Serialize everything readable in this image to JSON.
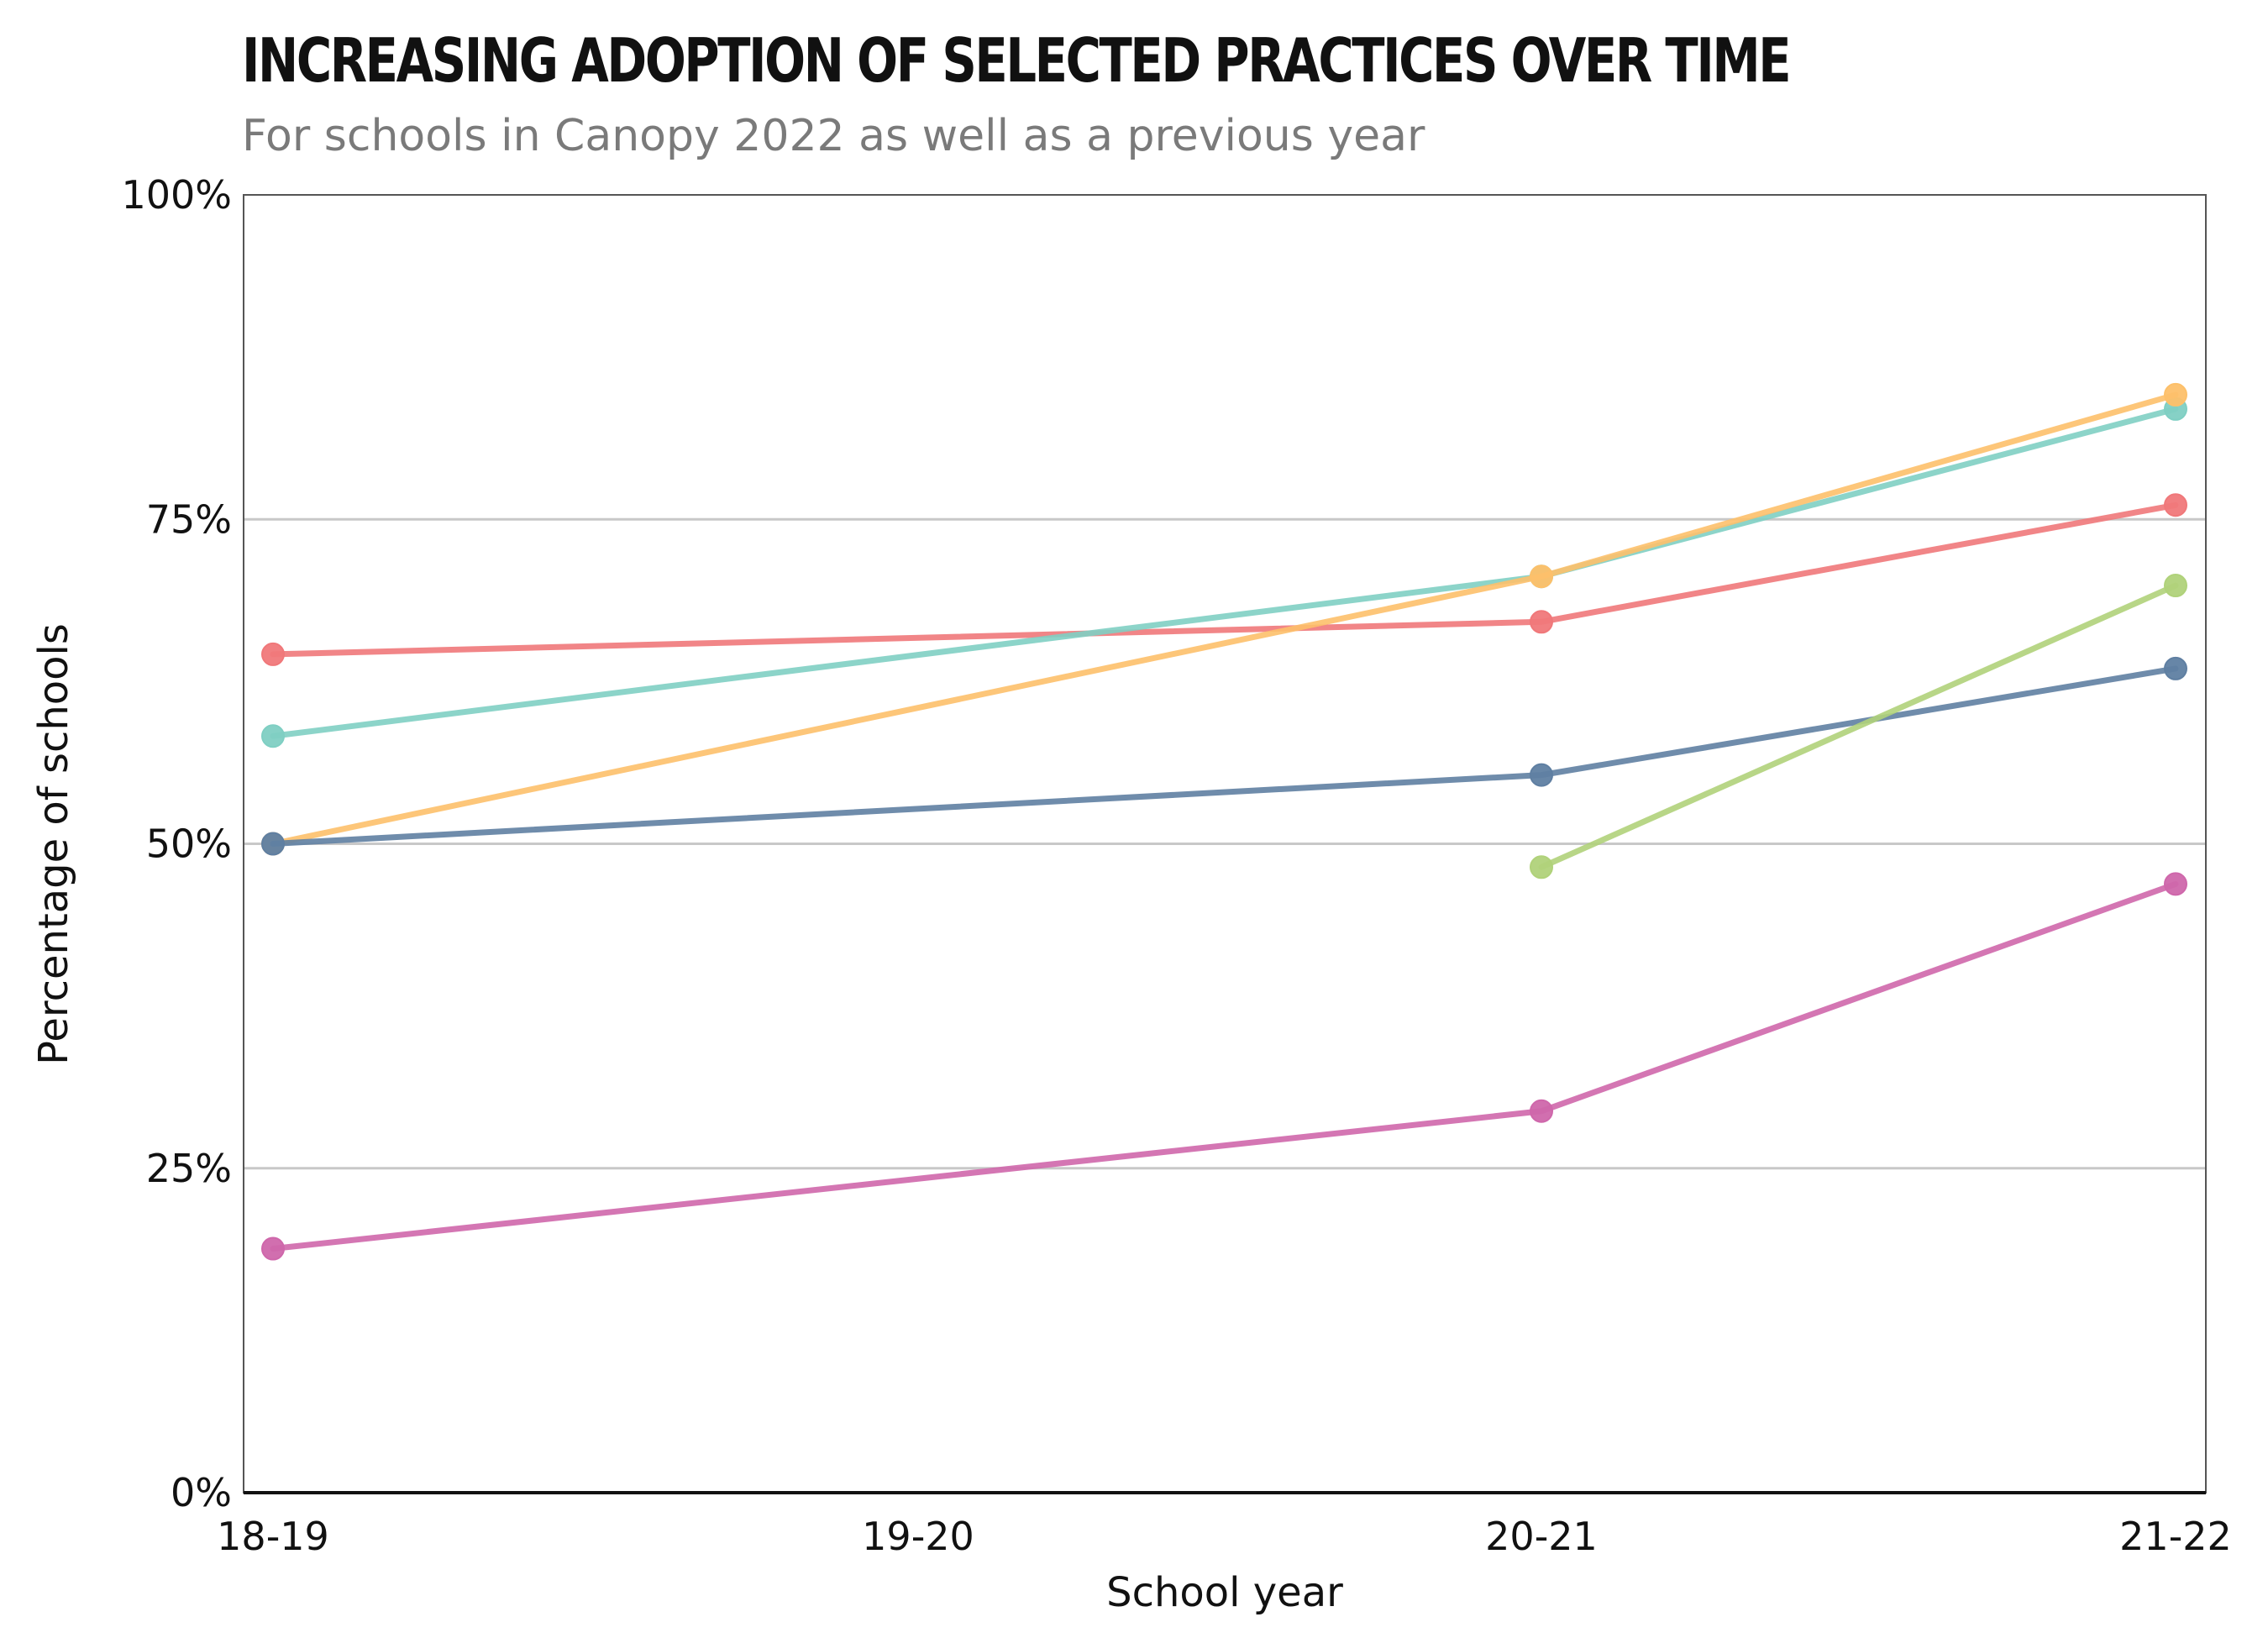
{
  "title": "INCREASING ADOPTION OF SELECTED PRACTICES OVER TIME",
  "subtitle": "For schools in Canopy 2022 as well as a previous year",
  "chart_data": {
    "type": "line",
    "x": [
      "18-19",
      "19-20",
      "20-21",
      "21-22"
    ],
    "xlabel": "School year",
    "ylabel": "Percentage of schools",
    "ylim": [
      0,
      1
    ],
    "yticks": [
      0,
      0.25,
      0.5,
      0.75,
      1.0
    ],
    "ytick_labels": [
      "0%",
      "25%",
      "50%",
      "75%",
      "100%"
    ],
    "grid": "horizontal at 25%, 50%, 75%",
    "series": [
      {
        "color": "#f0787a",
        "values": [
          0.646,
          null,
          0.671,
          0.761
        ]
      },
      {
        "color": "#7fcfc3",
        "values": [
          0.583,
          null,
          0.706,
          0.835
        ]
      },
      {
        "color": "#fdc06a",
        "values": [
          0.5,
          null,
          0.706,
          0.846
        ]
      },
      {
        "color": "#5f7fa2",
        "values": [
          0.5,
          null,
          0.553,
          0.635
        ]
      },
      {
        "color": "#b0d27a",
        "values": [
          null,
          null,
          0.482,
          0.699
        ]
      },
      {
        "color": "#cf67ab",
        "values": [
          0.188,
          null,
          0.294,
          0.469
        ]
      }
    ]
  }
}
